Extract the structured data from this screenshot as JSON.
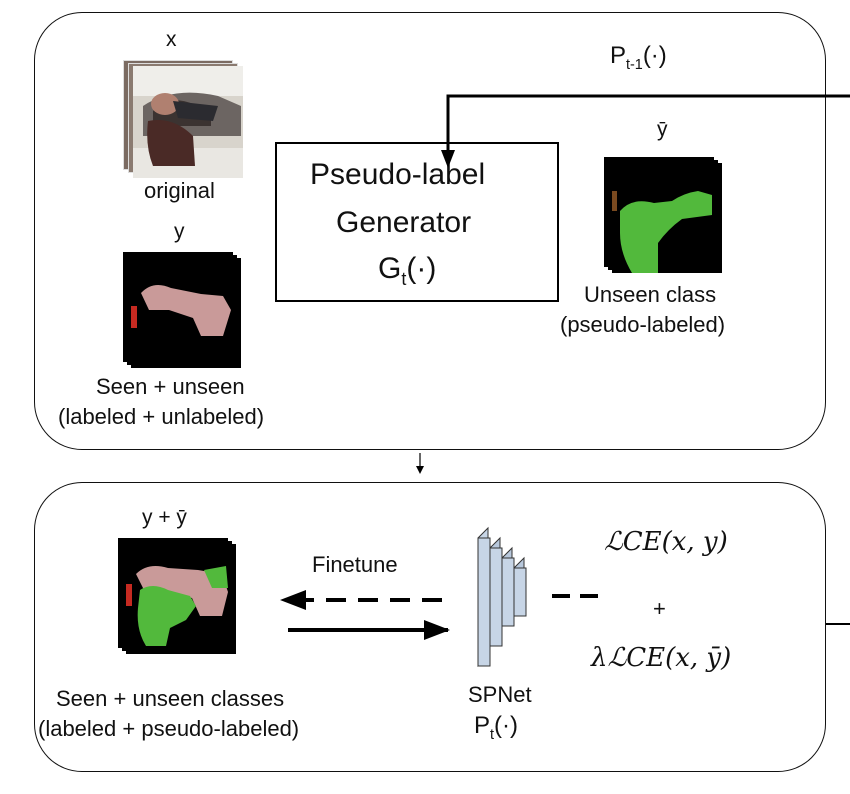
{
  "top_panel": {
    "x_label": "x",
    "original_label": "original",
    "y_label": "y",
    "seen_unseen_line1": "Seen + unseen",
    "seen_unseen_line2": "(labeled + unlabeled)",
    "prev_model_label": "P",
    "prev_model_sub": "t-1",
    "prev_model_arg": "(·)",
    "generator": {
      "line1": "Pseudo-label",
      "line2": "Generator",
      "symbol": "G",
      "symbol_sub": "t",
      "symbol_arg": "(·)"
    },
    "ybar_label": "ȳ",
    "unseen_line1": "Unseen class",
    "unseen_line2": "(pseudo-labeled)"
  },
  "bottom_panel": {
    "y_plus_ybar_label": "y + ȳ",
    "finetune_label": "Finetune",
    "seen_unseen_classes_line1": "Seen + unseen classes",
    "seen_unseen_classes_line2": "(labeled + pseudo-labeled)",
    "spnet_label": "SPNet",
    "spnet_symbol": "P",
    "spnet_sub": "t",
    "spnet_arg": "(·)",
    "loss1": "ℒCE(x, y)",
    "loss_plus": "+",
    "loss2": "λℒCE(x, ȳ)"
  },
  "colors": {
    "seen_pink": "#c99a99",
    "unseen_green": "#52b93c",
    "mask_black": "#000000",
    "accent_red": "#c62a21",
    "network_blue": "#c7d5e6"
  }
}
